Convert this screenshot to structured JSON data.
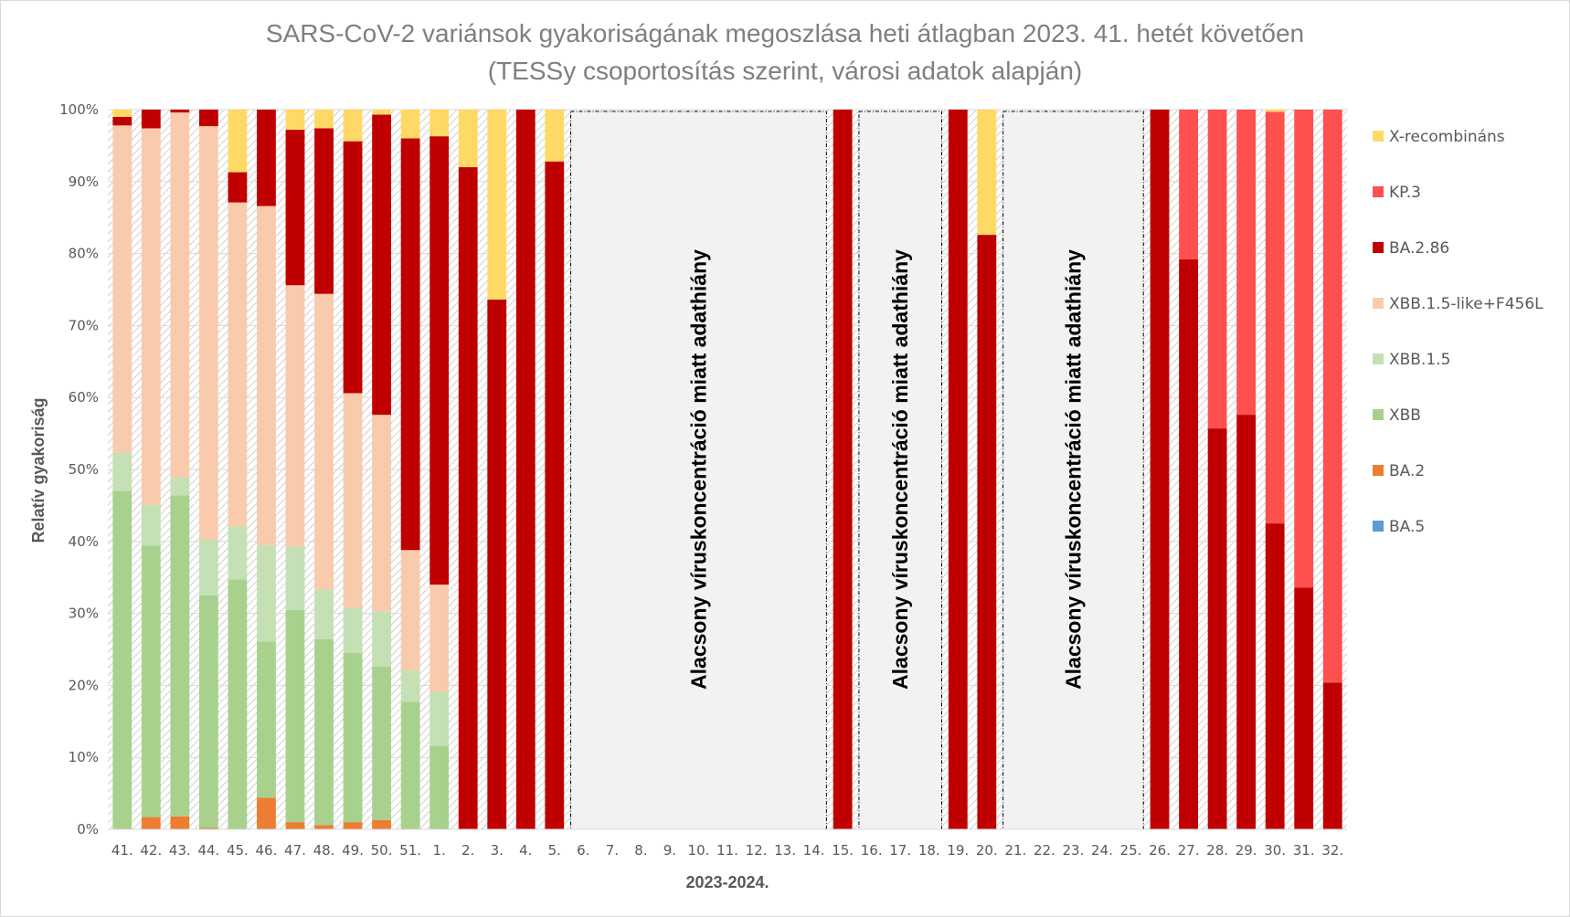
{
  "chart_data": {
    "type": "bar",
    "stacked": true,
    "title": "SARS-CoV-2 variánsok gyakoriságának megoszlása heti átlagban 2023. 41. hetét követően",
    "subtitle": "(TESSy csoportosítás szerint, városi adatok alapján)",
    "xlabel": "2023-2024.",
    "ylabel": "Relatív gyakoriság",
    "ylim": [
      0,
      100
    ],
    "yticks": [
      "0%",
      "10%",
      "20%",
      "30%",
      "40%",
      "50%",
      "60%",
      "70%",
      "80%",
      "90%",
      "100%"
    ],
    "grid": true,
    "legend_position": "right",
    "categories": [
      "41.",
      "42.",
      "43.",
      "44.",
      "45.",
      "46.",
      "47.",
      "48.",
      "49.",
      "50.",
      "51.",
      "1.",
      "2.",
      "3.",
      "4.",
      "5.",
      "6.",
      "7.",
      "8.",
      "9.",
      "10.",
      "11.",
      "12.",
      "13.",
      "14.",
      "15.",
      "16.",
      "17.",
      "18.",
      "19.",
      "20.",
      "21.",
      "22.",
      "23.",
      "24.",
      "25.",
      "26.",
      "27.",
      "28.",
      "29.",
      "30.",
      "31.",
      "32."
    ],
    "series": [
      {
        "name": "BA.5",
        "color": "#5b9bd5",
        "values": [
          0,
          0,
          0,
          0,
          0,
          0,
          0,
          0,
          0,
          0,
          0,
          0,
          0,
          0,
          0,
          0,
          null,
          null,
          null,
          null,
          null,
          null,
          null,
          null,
          null,
          0,
          null,
          null,
          null,
          0,
          0,
          null,
          null,
          null,
          null,
          null,
          0,
          0,
          0,
          0,
          0,
          0,
          0
        ]
      },
      {
        "name": "BA.2",
        "color": "#ed7d31",
        "values": [
          0,
          1.7,
          1.8,
          0.2,
          0,
          4.4,
          1.0,
          0.6,
          1.0,
          1.3,
          0,
          0,
          0,
          0,
          0,
          0,
          null,
          null,
          null,
          null,
          null,
          null,
          null,
          null,
          null,
          0,
          null,
          null,
          null,
          0,
          0,
          null,
          null,
          null,
          null,
          null,
          0,
          0,
          0,
          0,
          0,
          0,
          0
        ]
      },
      {
        "name": "XBB",
        "color": "#a9d18e",
        "values": [
          47.0,
          37.7,
          44.6,
          32.3,
          34.7,
          21.7,
          29.5,
          25.8,
          23.5,
          21.3,
          17.7,
          11.6,
          0,
          0,
          0,
          0,
          null,
          null,
          null,
          null,
          null,
          null,
          null,
          null,
          null,
          0,
          null,
          null,
          null,
          0,
          0,
          null,
          null,
          null,
          null,
          null,
          0,
          0,
          0,
          0,
          0,
          0,
          0
        ]
      },
      {
        "name": "XBB.1.5",
        "color": "#c5e0b4",
        "values": [
          5.3,
          5.7,
          2.5,
          7.7,
          7.4,
          13.4,
          8.8,
          6.9,
          6.3,
          7.7,
          4.4,
          7.5,
          0,
          0,
          0,
          0,
          null,
          null,
          null,
          null,
          null,
          null,
          null,
          null,
          null,
          0,
          null,
          null,
          null,
          0,
          0,
          null,
          null,
          null,
          null,
          null,
          0,
          0,
          0,
          0,
          0,
          0,
          0
        ]
      },
      {
        "name": "XBB.1.5-like+F456L",
        "color": "#f8cbad",
        "values": [
          45.5,
          52.3,
          50.7,
          57.5,
          45.0,
          47.1,
          36.3,
          41.1,
          29.8,
          27.3,
          16.7,
          14.9,
          0,
          0,
          0,
          0,
          null,
          null,
          null,
          null,
          null,
          null,
          null,
          null,
          null,
          0,
          null,
          null,
          null,
          0,
          0,
          null,
          null,
          null,
          null,
          null,
          0,
          0,
          0,
          0,
          0,
          0,
          0
        ]
      },
      {
        "name": "BA.2.86",
        "color": "#c00000",
        "values": [
          1.2,
          2.6,
          0.4,
          2.3,
          4.2,
          13.4,
          21.6,
          23.0,
          35.0,
          41.7,
          57.2,
          62.3,
          92.0,
          73.6,
          100,
          92.8,
          null,
          null,
          null,
          null,
          null,
          null,
          null,
          null,
          null,
          100,
          null,
          null,
          null,
          100,
          82.6,
          null,
          null,
          null,
          null,
          null,
          100,
          79.2,
          55.7,
          57.6,
          42.5,
          33.6,
          20.4
        ]
      },
      {
        "name": "KP.3",
        "color": "#ff5050",
        "values": [
          0,
          0,
          0,
          0,
          0,
          0,
          0,
          0,
          0,
          0,
          0,
          0,
          0,
          0,
          0,
          0,
          null,
          null,
          null,
          null,
          null,
          null,
          null,
          null,
          null,
          0,
          null,
          null,
          null,
          0,
          0,
          null,
          null,
          null,
          null,
          null,
          0,
          20.8,
          44.3,
          42.4,
          57.2,
          66.4,
          79.6
        ]
      },
      {
        "name": "X-recombináns",
        "color": "#ffd966",
        "values": [
          1.0,
          0,
          0,
          0,
          8.7,
          0,
          2.8,
          2.6,
          4.4,
          0.7,
          4.0,
          3.7,
          8.0,
          26.4,
          0,
          7.2,
          null,
          null,
          null,
          null,
          null,
          null,
          null,
          null,
          null,
          0,
          null,
          null,
          null,
          0,
          17.4,
          null,
          null,
          null,
          null,
          null,
          0,
          0,
          0,
          0,
          0.3,
          0,
          0
        ]
      }
    ],
    "legend_order": [
      "X-recombináns",
      "KP.3",
      "BA.2.86",
      "XBB.1.5-like+F456L",
      "XBB.1.5",
      "XBB",
      "BA.2",
      "BA.5"
    ],
    "annotations": [
      {
        "text": "Alacsony víruskoncentráció miatt adathiány",
        "from": "6.",
        "to": "14."
      },
      {
        "text": "Alacsony víruskoncentráció miatt adathiány",
        "from": "16.",
        "to": "18."
      },
      {
        "text": "Alacsony víruskoncentráció miatt adathiány",
        "from": "21.",
        "to": "25."
      }
    ]
  }
}
